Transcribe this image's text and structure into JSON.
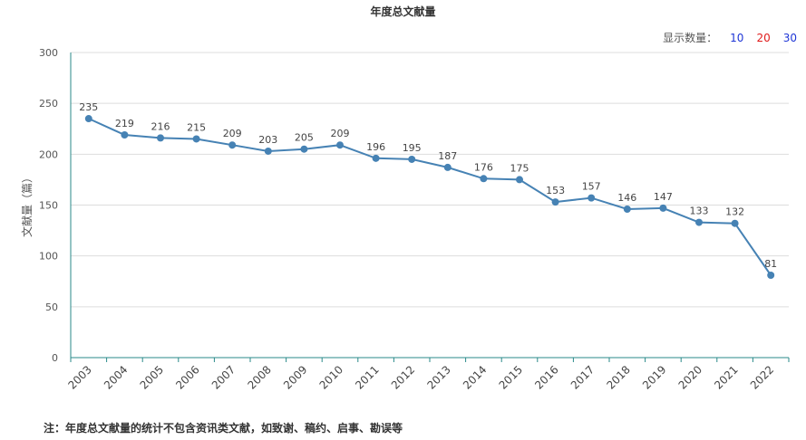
{
  "title": "年度总文献量",
  "count_selector": {
    "label": "显示数量：",
    "options": [
      "10",
      "20",
      "30"
    ],
    "colors": [
      "#1f36d6",
      "#e01b1b",
      "#1f36d6"
    ]
  },
  "footnote": "注：年度总文献量的统计不包含资讯类文献，如致谢、稿约、启事、勘误等",
  "chart_data": {
    "type": "line",
    "title": "年度总文献量",
    "xlabel": "",
    "ylabel": "文献量（篇）",
    "ylim": [
      0,
      300
    ],
    "yticks": [
      0,
      50,
      100,
      150,
      200,
      250,
      300
    ],
    "grid": true,
    "line_color": "#4682b4",
    "x": [
      "2003",
      "2004",
      "2005",
      "2006",
      "2007",
      "2008",
      "2009",
      "2010",
      "2011",
      "2012",
      "2013",
      "2014",
      "2015",
      "2016",
      "2017",
      "2018",
      "2019",
      "2020",
      "2021",
      "2022"
    ],
    "values": [
      235,
      219,
      216,
      215,
      209,
      203,
      205,
      209,
      196,
      195,
      187,
      176,
      175,
      153,
      157,
      146,
      147,
      133,
      132,
      81
    ]
  }
}
